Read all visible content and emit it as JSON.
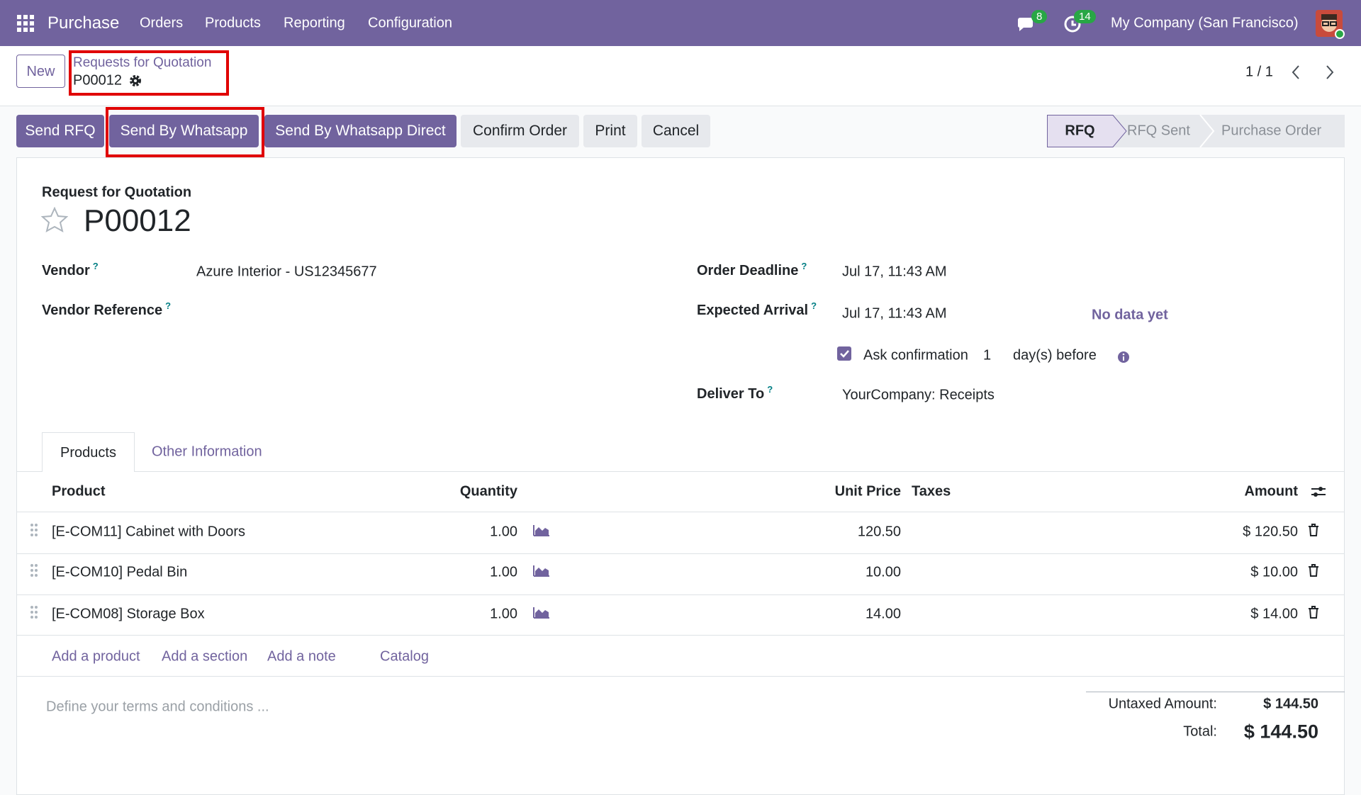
{
  "navbar": {
    "app": "Purchase",
    "menu": [
      "Orders",
      "Products",
      "Reporting",
      "Configuration"
    ],
    "messages_badge": 8,
    "activities_badge": 14,
    "company": "My Company (San Francisco)"
  },
  "control_panel": {
    "new_button": "New",
    "breadcrumb": "Requests for Quotation",
    "record": "P00012",
    "pager": "1 / 1"
  },
  "actions": [
    "Send RFQ",
    "Send By Whatsapp",
    "Send By Whatsapp Direct",
    "Confirm Order",
    "Print",
    "Cancel"
  ],
  "statusbar": [
    "RFQ",
    "RFQ Sent",
    "Purchase Order"
  ],
  "form": {
    "subtitle": "Request for Quotation",
    "name": "P00012",
    "help_marker": "?",
    "vendor": {
      "label": "Vendor",
      "value": "Azure Interior - US12345677"
    },
    "vendor_reference": {
      "label": "Vendor Reference"
    },
    "order_deadline": {
      "label": "Order Deadline",
      "value": "Jul 17, 11:43 AM"
    },
    "expected_arrival": {
      "label": "Expected Arrival",
      "value": "Jul 17, 11:43 AM",
      "note": "No data yet"
    },
    "ask_confirmation": {
      "label": "Ask confirmation",
      "days": "1",
      "suffix": "day(s) before"
    },
    "deliver_to": {
      "label": "Deliver To",
      "value": "YourCompany: Receipts"
    }
  },
  "tabs": [
    "Products",
    "Other Information"
  ],
  "table": {
    "columns": [
      "Product",
      "Quantity",
      "Unit Price",
      "Taxes",
      "Amount"
    ],
    "rows": [
      [
        "[E-COM11] Cabinet with Doors",
        "1.00",
        "120.50",
        "$ 120.50"
      ],
      [
        "[E-COM10] Pedal Bin",
        "1.00",
        "10.00",
        "$ 10.00"
      ],
      [
        "[E-COM08] Storage Box",
        "1.00",
        "14.00",
        "$ 14.00"
      ]
    ],
    "add_links": [
      "Add a product",
      "Add a section",
      "Add a note",
      "Catalog"
    ]
  },
  "terms_placeholder": "Define your terms and conditions ...",
  "totals": {
    "untaxed_label": "Untaxed Amount:",
    "untaxed_value": "$ 144.50",
    "total_label": "Total:",
    "total_value": "$ 144.50"
  }
}
